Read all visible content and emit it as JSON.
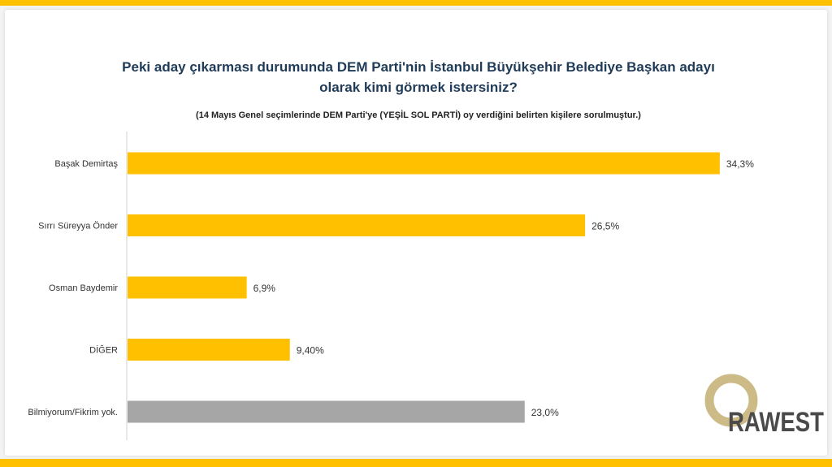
{
  "header": {
    "title_line1": "Peki aday çıkarması durumunda  DEM Parti'nin İstanbul Büyükşehir Belediye Başkan adayı",
    "title_line2": "olarak kimi görmek istersiniz?",
    "subtitle": "(14 Mayıs Genel seçimlerinde DEM Parti'ye (YEŞİL SOL PARTİ) oy verdiğini belirten kişilere sorulmuştur.)"
  },
  "chart_data": {
    "type": "bar",
    "orientation": "horizontal",
    "title": "Peki aday çıkarması durumunda  DEM Parti'nin İstanbul Büyükşehir Belediye Başkan adayı olarak kimi görmek istersiniz?",
    "subtitle": "(14 Mayıs Genel seçimlerinde DEM Parti'ye (YEŞİL SOL PARTİ) oy verdiğini belirten kişilere sorulmuştur.)",
    "categories": [
      "Başak Demirtaş",
      "Sırrı Süreyya Önder",
      "Osman Baydemir",
      "DİĞER",
      "Bilmiyorum/Fikrim yok."
    ],
    "values": [
      34.3,
      26.5,
      6.9,
      9.4,
      23.0
    ],
    "value_labels": [
      "34,3%",
      "26,5%",
      "6,9%",
      "9,40%",
      "23,0%"
    ],
    "bar_colors": [
      "#ffc000",
      "#ffc000",
      "#ffc000",
      "#ffc000",
      "#a6a6a6"
    ],
    "xlim": [
      0,
      40
    ],
    "grid": false,
    "legend": "none"
  },
  "logo": {
    "text": "RAWEST"
  },
  "colors": {
    "accent": "#ffc000",
    "neutral": "#a6a6a6",
    "title": "#1f3b57"
  }
}
